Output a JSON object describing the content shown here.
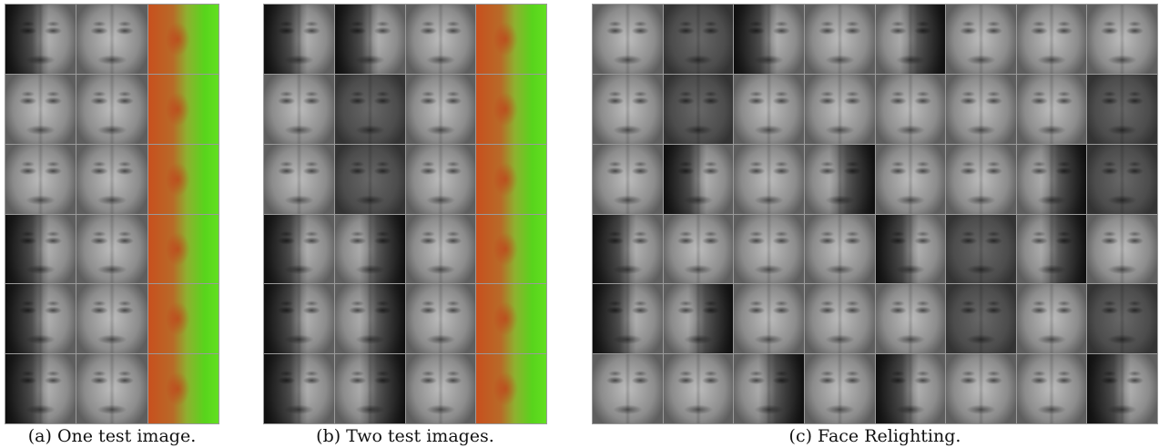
{
  "panels": [
    {
      "caption": "(a) One test image.",
      "rows": 6,
      "cols": 3,
      "tiles": [
        "shadow-left",
        "plain",
        "normal",
        "plain",
        "plain",
        "normal",
        "plain",
        "plain",
        "normal",
        "shadow-left",
        "plain",
        "normal",
        "shadow-left",
        "plain",
        "normal",
        "shadow-left",
        "plain",
        "normal"
      ]
    },
    {
      "caption": "(b) Two test images.",
      "rows": 6,
      "cols": 4,
      "tiles": [
        "shadow-left",
        "shadow-left",
        "plain",
        "normal",
        "plain",
        "dark",
        "plain",
        "normal",
        "plain",
        "dark",
        "plain",
        "normal",
        "shadow-left",
        "shadow-right",
        "plain",
        "normal",
        "shadow-left",
        "shadow-right",
        "plain",
        "normal",
        "shadow-left",
        "shadow-right",
        "plain",
        "normal"
      ]
    },
    {
      "caption": "(c) Face Relighting.",
      "rows": 6,
      "cols": 8,
      "tiles": [
        "plain",
        "dark",
        "shadow-left",
        "plain",
        "shadow-right",
        "plain",
        "plain",
        "plain",
        "plain",
        "dark",
        "plain",
        "plain",
        "plain",
        "plain",
        "plain",
        "dark",
        "plain",
        "shadow-left",
        "plain",
        "shadow-right",
        "plain",
        "plain",
        "shadow-right",
        "dark",
        "shadow-left",
        "plain",
        "plain",
        "plain",
        "shadow-left",
        "dark",
        "shadow-right",
        "plain",
        "shadow-left",
        "shadow-right",
        "plain",
        "plain",
        "plain",
        "dark",
        "plain",
        "dark",
        "plain",
        "plain",
        "shadow-right",
        "plain",
        "shadow-left",
        "plain",
        "plain",
        "shadow-left"
      ]
    }
  ]
}
